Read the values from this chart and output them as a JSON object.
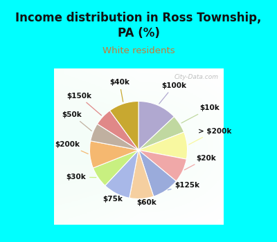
{
  "title": "Income distribution in Ross Township,\nPA (%)",
  "subtitle": "White residents",
  "title_color": "#111111",
  "subtitle_color": "#cc7733",
  "background_cyan": "#00ffff",
  "watermark": "City-Data.com",
  "labels": [
    "$100k",
    "$10k",
    "> $200k",
    "$20k",
    "$125k",
    "$60k",
    "$75k",
    "$30k",
    "$200k",
    "$50k",
    "$150k",
    "$40k"
  ],
  "values": [
    13,
    6,
    9,
    8,
    9,
    8,
    9,
    7,
    9,
    6,
    6,
    10
  ],
  "colors": [
    "#b0a8d0",
    "#c0d8a0",
    "#f8f8a0",
    "#f0a8a8",
    "#9aabdb",
    "#f5cfa0",
    "#a8b8e8",
    "#c8f080",
    "#f5b870",
    "#c0b0a0",
    "#e08888",
    "#c8a830"
  ]
}
